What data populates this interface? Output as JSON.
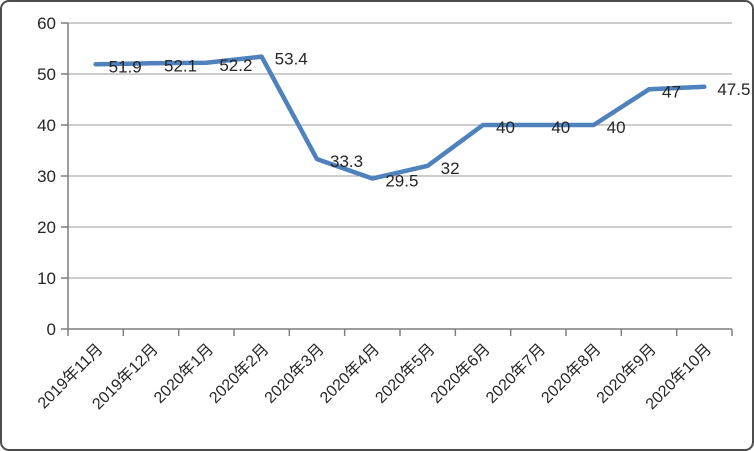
{
  "chart_data": {
    "type": "line",
    "title": "",
    "xlabel": "",
    "ylabel": "",
    "categories": [
      "2019年11月",
      "2019年12月",
      "2020年1月",
      "2020年2月",
      "2020年3月",
      "2020年4月",
      "2020年5月",
      "2020年6月",
      "2020年7月",
      "2020年8月",
      "2020年9月",
      "2020年10月"
    ],
    "series": [
      {
        "name": "",
        "values": [
          51.9,
          52.1,
          52.2,
          53.4,
          33.3,
          29.5,
          32,
          40,
          40,
          40,
          47,
          47.5
        ],
        "data_labels": [
          "51.9",
          "52.1",
          "52.2",
          "53.4",
          "33.3",
          "29.5",
          "32",
          "40",
          "40",
          "40",
          "47",
          "47.5"
        ]
      }
    ],
    "ylim": [
      0,
      60
    ],
    "yticks": [
      0,
      10,
      20,
      30,
      40,
      50,
      60
    ],
    "grid": true,
    "legend": "none",
    "colors": {
      "line": "#4F81BD",
      "data_label": "#262626",
      "tick_label": "#262626",
      "axis": "#7f7f7f",
      "gridline": "#9b9b9b",
      "background": "#ffffff",
      "frame_border": "#4d4d4d"
    }
  }
}
